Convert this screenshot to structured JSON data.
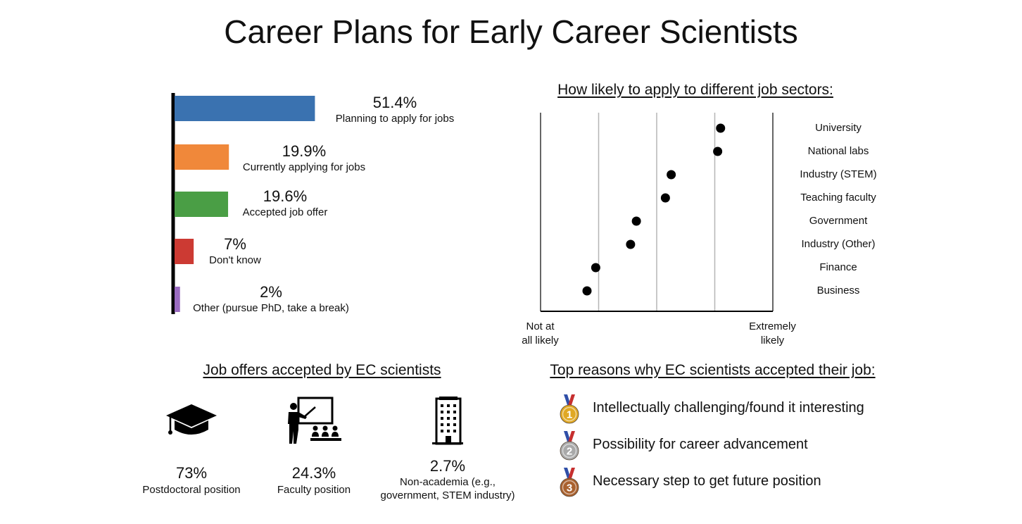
{
  "title": "Career Plans for Early Career Scientists",
  "chart_data": [
    {
      "type": "bar",
      "orientation": "horizontal",
      "title": "",
      "categories": [
        "Planning to apply for jobs",
        "Currently applying for jobs",
        "Accepted job offer",
        "Don't know",
        "Other (pursue PhD, take a break)"
      ],
      "values": [
        51.4,
        19.9,
        19.6,
        7,
        2
      ],
      "value_labels": [
        "51.4%",
        "19.9%",
        "19.6%",
        "7%",
        "2%"
      ],
      "colors": [
        "#3a72b0",
        "#f0883a",
        "#4a9e45",
        "#cc3a33",
        "#9a6bc0"
      ],
      "xlim": [
        0,
        100
      ],
      "grid": false,
      "legend": "none"
    },
    {
      "type": "scatter",
      "title": "How likely to apply to different job sectors:",
      "categories": [
        "University",
        "National labs",
        "Industry (STEM)",
        "Teaching faculty",
        "Government",
        "Industry (Other)",
        "Finance",
        "Business"
      ],
      "values": [
        4.1,
        4.05,
        3.25,
        3.15,
        2.65,
        2.55,
        1.95,
        1.8
      ],
      "xlim": [
        1,
        5
      ],
      "x_tick_labels": {
        "min": "Not at all likely",
        "max": "Extremely likely"
      },
      "grid": true,
      "legend": "none"
    }
  ],
  "bar_labels": {
    "pcts": [
      "51.4%",
      "19.9%",
      "19.6%",
      "7%",
      "2%"
    ],
    "names": [
      "Planning to apply for jobs",
      "Currently applying for jobs",
      "Accepted job offer",
      "Don't know",
      "Other (pursue PhD, take a break)"
    ]
  },
  "sectors": {
    "title": "How likely to apply to different job sectors:",
    "labels": [
      "University",
      "National labs",
      "Industry (STEM)",
      "Teaching faculty",
      "Government",
      "Industry (Other)",
      "Finance",
      "Business"
    ],
    "axis_min_label": "Not at\nall likely",
    "axis_max_label": "Extremely\nlikely"
  },
  "job_offers": {
    "title": "Job offers accepted by EC scientists",
    "items": [
      {
        "pct": "73%",
        "label": "Postdoctoral position",
        "icon": "graduation-cap-icon"
      },
      {
        "pct": "24.3%",
        "label": "Faculty position",
        "icon": "teacher-presentation-icon"
      },
      {
        "pct": "2.7%",
        "label": "Non-academia (e.g.,\ngovernment, STEM industry)",
        "icon": "office-building-icon"
      }
    ]
  },
  "reasons": {
    "title": "Top reasons why EC scientists accepted their job:",
    "items": [
      {
        "rank": "1",
        "text": "Intellectually challenging/found it interesting",
        "medal": "gold-medal-icon",
        "color": "#e0a824"
      },
      {
        "rank": "2",
        "text": "Possibility for career advancement",
        "medal": "silver-medal-icon",
        "color": "#a9a9a9"
      },
      {
        "rank": "3",
        "text": "Necessary step to get future position",
        "medal": "bronze-medal-icon",
        "color": "#a9612e"
      }
    ]
  }
}
